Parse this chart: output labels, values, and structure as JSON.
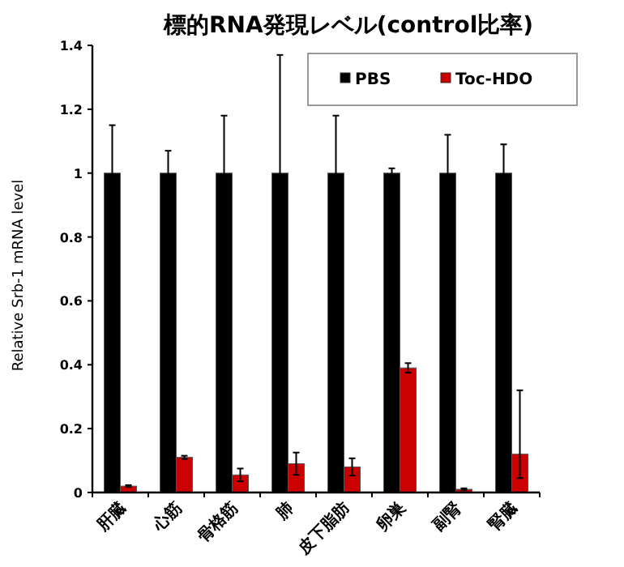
{
  "chart_data": {
    "type": "bar",
    "title": "標的RNA発現レベル(control比率)",
    "ylabel": "Relative Srb-1 mRNA level",
    "categories": [
      "肝臓",
      "心筋",
      "骨格筋",
      "肺",
      "皮下脂肪",
      "卵巣",
      "副腎",
      "腎臓"
    ],
    "series": [
      {
        "name": "PBS",
        "color": "#000000",
        "values": [
          1,
          1,
          1,
          1,
          1,
          1,
          1,
          1
        ],
        "errors": [
          0.15,
          0.07,
          0.18,
          0.37,
          0.18,
          0.015,
          0.12,
          0.09
        ]
      },
      {
        "name": "Toc-HDO",
        "color": "#cc0000",
        "values": [
          0.02,
          0.11,
          0.055,
          0.09,
          0.08,
          0.39,
          0.01,
          0.12
        ],
        "errors": [
          0.003,
          0.005,
          0.02,
          0.035,
          0.027,
          0.015,
          0.003,
          [
            0.045,
            0.32
          ]
        ]
      }
    ],
    "ylim": [
      0,
      1.4
    ],
    "yticks": [
      0,
      0.2,
      0.4,
      0.6,
      0.8,
      1,
      1.2,
      1.4
    ],
    "legend": "top right",
    "grid": false
  }
}
